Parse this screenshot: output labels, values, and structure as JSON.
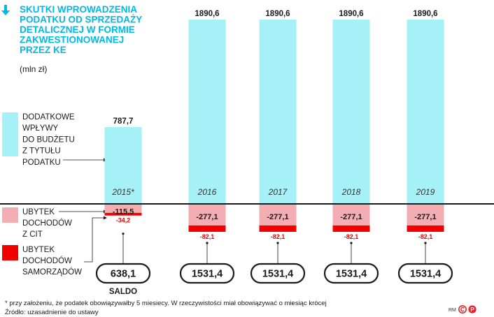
{
  "title_lines": [
    "SKUTKI WPROWADZENIA",
    "PODATKU OD SPRZEDAŻY",
    "DETALICZNEJ W FORMIE",
    "ZAKWESTIONOWANEJ",
    "PRZEZ KE"
  ],
  "unit": "(mln zł)",
  "legend": {
    "revenue": [
      "DODATKOWE",
      "WPŁYWY",
      "DO BUDŻETU",
      "Z TYTUŁU",
      "PODATKU"
    ],
    "cit": [
      "UBYTEK",
      "DOCHODÓW",
      "Z CIT"
    ],
    "local": [
      "UBYTEK",
      "DOCHODÓW",
      "SAMORZĄDÓW"
    ]
  },
  "saldo_label": "SALDO",
  "footnote": "* przy założeniu, że podatek obowiązywałby 5 miesiecy. W rzeczywistości miał obowiązywać o miesiąc krócej",
  "source": "Źródło: uzasadnienie do ustawy",
  "credit": "RM",
  "colors": {
    "accent": "#00b9e5",
    "revenue": "#a6f0f8",
    "cit": "#f2aeb2",
    "local": "#f00000",
    "axis": "#1a1a1a",
    "text": "#1a1a1a"
  },
  "chart_data": {
    "type": "bar",
    "categories": [
      "2015*",
      "2016",
      "2017",
      "2018",
      "2019"
    ],
    "series": [
      {
        "name": "DODATKOWE WPŁYWY DO BUDŻETU Z TYTUŁU PODATKU",
        "values": [
          787.7,
          1890.6,
          1890.6,
          1890.6,
          1890.6
        ],
        "labels": [
          "787,7",
          "1890,6",
          "1890,6",
          "1890,6",
          "1890,6"
        ]
      },
      {
        "name": "UBYTEK DOCHODÓW Z CIT",
        "values": [
          -115.5,
          -277.1,
          -277.1,
          -277.1,
          -277.1
        ],
        "labels": [
          "-115,5",
          "-277,1",
          "-277,1",
          "-277,1",
          "-277,1"
        ]
      },
      {
        "name": "UBYTEK DOCHODÓW SAMORZĄDÓW",
        "values": [
          -34.2,
          -82.1,
          -82.1,
          -82.1,
          -82.1
        ],
        "labels": [
          "-34,2",
          "-82,1",
          "-82,1",
          "-82,1",
          "-82,1"
        ]
      }
    ],
    "saldo": {
      "values": [
        638.1,
        1531.4,
        1531.4,
        1531.4,
        1531.4
      ],
      "labels": [
        "638,1",
        "1531,4",
        "1531,4",
        "1531,4",
        "1531,4"
      ]
    }
  }
}
